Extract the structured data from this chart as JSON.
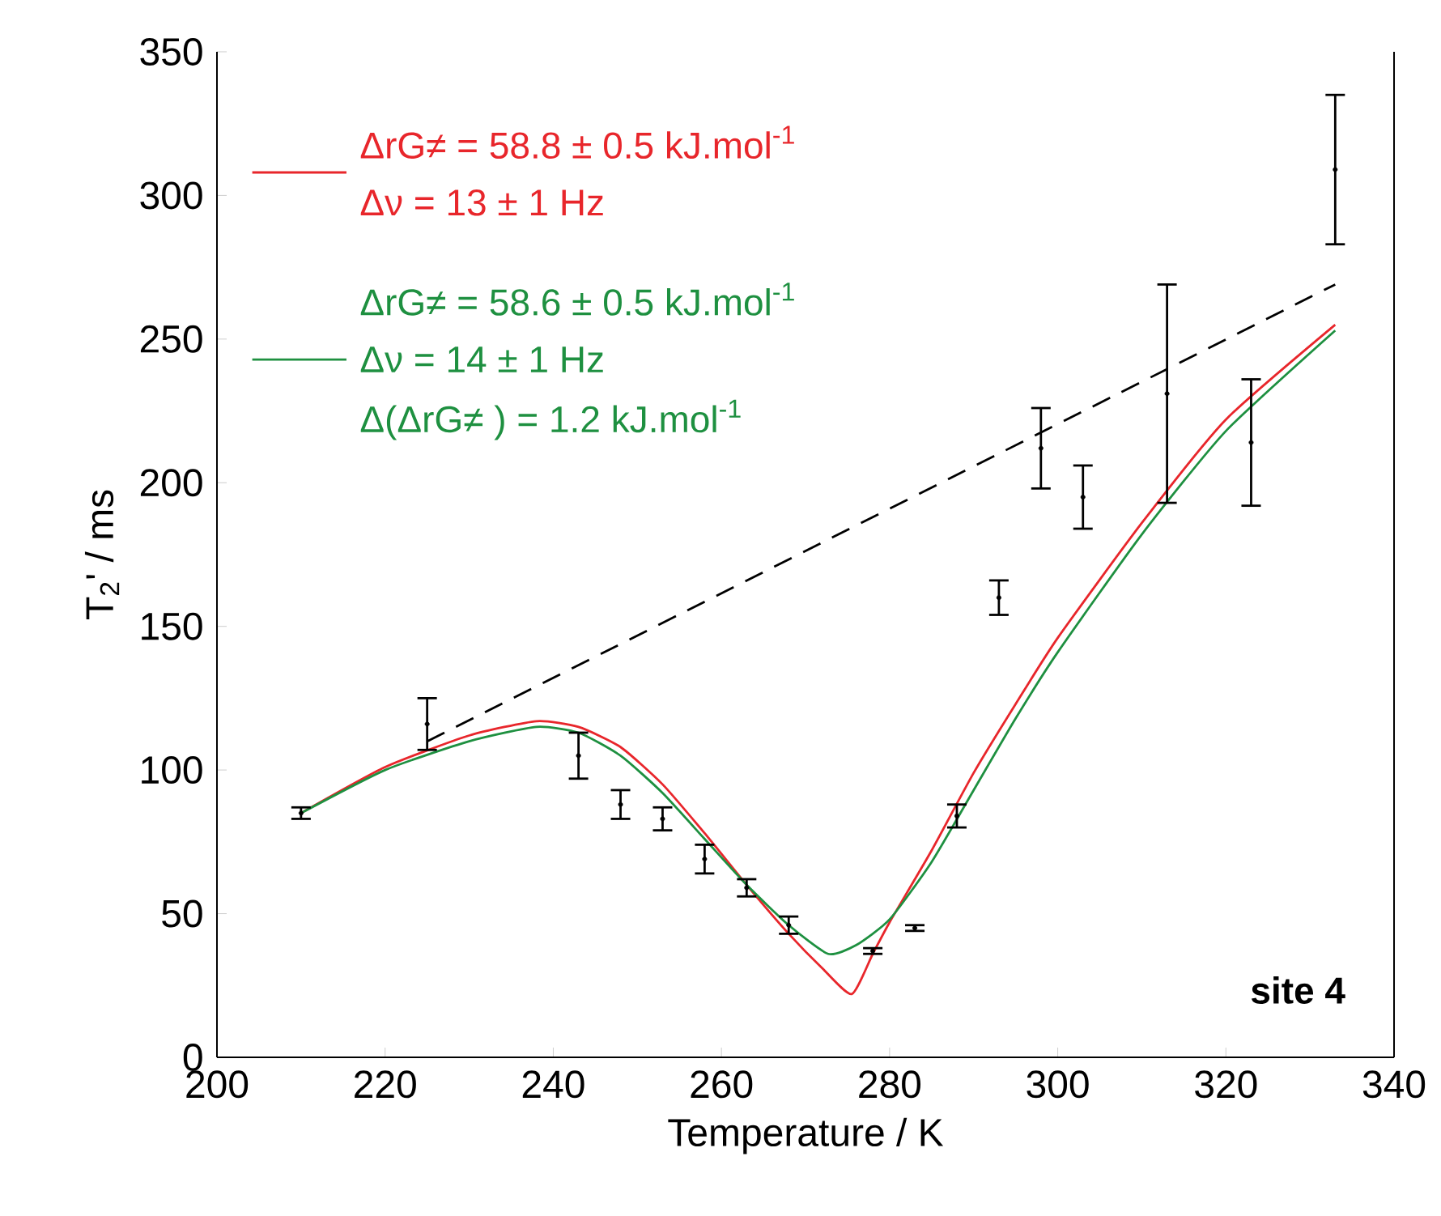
{
  "chart_data": {
    "type": "line",
    "xlabel": "Temperature / K",
    "ylabel": "T$_{2}$' / ms",
    "xlim": [
      200,
      340
    ],
    "ylim": [
      0,
      350
    ],
    "xticks": [
      200,
      220,
      240,
      260,
      280,
      300,
      320,
      340
    ],
    "yticks": [
      0,
      50,
      100,
      150,
      200,
      250,
      300,
      350
    ],
    "legend": "top left",
    "annotations": [
      "Δν = 13 ± 1 Hz",
      "Δν = 14 ± 1 Hz",
      "Δ(ΔrG≠ ) = 1.2 kJ.mol$^{-1}$",
      "**site 4**"
    ],
    "series": [
      {
        "name": "ΔrG≠ = 58.8 ± 0.5 kJ.mol$^{-1}$",
        "type": "line",
        "color": "#e8262b",
        "x": [
          210,
          220,
          230,
          238,
          243,
          248,
          253,
          258,
          263,
          268,
          272,
          275.5,
          278,
          280,
          285,
          290,
          295,
          300,
          310,
          320,
          333
        ],
        "values": [
          85,
          101,
          112,
          117,
          115,
          108,
          95,
          78,
          60,
          43,
          31,
          22,
          36,
          47,
          72,
          99,
          123,
          146,
          186,
          222,
          255
        ]
      },
      {
        "name": "ΔrG≠ = 58.6 ± 0.5 kJ.mol$^{-1}$",
        "type": "line",
        "color": "#1e9040",
        "x": [
          210,
          220,
          230,
          238,
          243,
          248,
          253,
          258,
          263,
          268,
          272.7,
          276,
          280,
          285,
          290,
          295,
          300,
          310,
          320,
          333
        ],
        "values": [
          85,
          100,
          110,
          115,
          113,
          105,
          92,
          76,
          60,
          46,
          36,
          39,
          48,
          68,
          93,
          118,
          141,
          182,
          218,
          253
        ]
      },
      {
        "type": "line",
        "color": "#000000",
        "line_style": "dashed",
        "x": [
          225,
          333
        ],
        "values": [
          110,
          269
        ]
      },
      {
        "type": "scatter",
        "color": "#000000",
        "x": [
          210,
          225,
          243,
          248,
          253,
          258,
          263,
          268,
          278,
          283,
          288,
          293,
          298,
          303,
          313,
          323,
          333
        ],
        "values": [
          85,
          116,
          105,
          88,
          83,
          69,
          59,
          46,
          37,
          45,
          84,
          160,
          212,
          195,
          231,
          214,
          309
        ],
        "errors": [
          2,
          9,
          8,
          5,
          4,
          5,
          3,
          3,
          1,
          1,
          4,
          6,
          14,
          11,
          38,
          22,
          26
        ]
      }
    ]
  }
}
